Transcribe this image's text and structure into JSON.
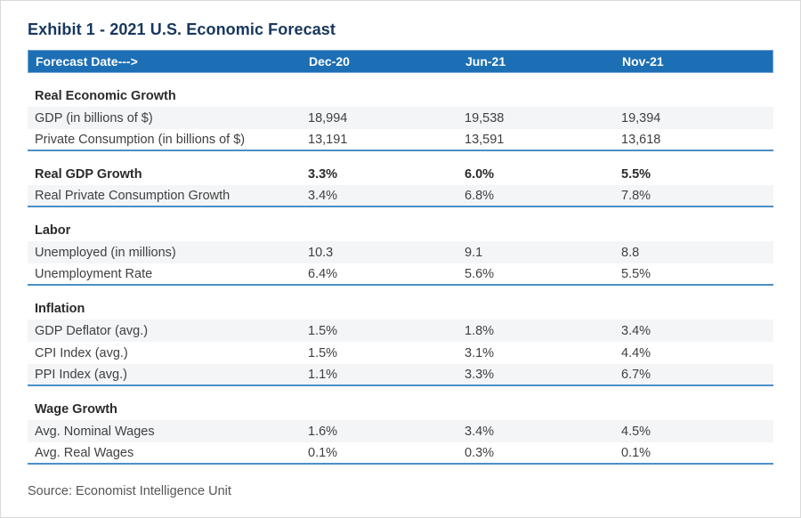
{
  "title": "Exhibit 1 - 2021 U.S. Economic Forecast",
  "source_note": "Source: Economist Intelligence Unit",
  "colors": {
    "header_bg": "#1d6fb5",
    "header_border": "#6fa3d8",
    "header_text": "#ffffff",
    "title_text": "#17375d",
    "section_rule": "#4b8fc9",
    "row_alt_bg": "#f3f5f7",
    "body_text": "#404040",
    "source_text": "#565656",
    "page_border": "#d9d9d9"
  },
  "chart_data": {
    "type": "table",
    "title": "Exhibit 1 - 2021 U.S. Economic Forecast",
    "columns": [
      "Forecast Date--->",
      "Dec-20",
      "Jun-21",
      "Nov-21"
    ],
    "sections": [
      {
        "name": "Real Economic Growth",
        "values": [
          "",
          "",
          ""
        ],
        "rows": [
          {
            "label": "GDP (in billions of $)",
            "values": [
              "18,994",
              "19,538",
              "19,394"
            ]
          },
          {
            "label": "Private Consumption (in billions of $)",
            "values": [
              "13,191",
              "13,591",
              "13,618"
            ]
          }
        ]
      },
      {
        "name": "Real GDP Growth",
        "values": [
          "3.3%",
          "6.0%",
          "5.5%"
        ],
        "rows": [
          {
            "label": "Real Private Consumption Growth",
            "values": [
              "3.4%",
              "6.8%",
              "7.8%"
            ]
          }
        ]
      },
      {
        "name": "Labor",
        "values": [
          "",
          "",
          ""
        ],
        "rows": [
          {
            "label": "Unemployed (in millions)",
            "values": [
              "10.3",
              "9.1",
              "8.8"
            ]
          },
          {
            "label": "Unemployment Rate",
            "values": [
              "6.4%",
              "5.6%",
              "5.5%"
            ]
          }
        ]
      },
      {
        "name": "Inflation",
        "values": [
          "",
          "",
          ""
        ],
        "rows": [
          {
            "label": "GDP Deflator (avg.)",
            "values": [
              "1.5%",
              "1.8%",
              "3.4%"
            ]
          },
          {
            "label": "CPI Index (avg.)",
            "values": [
              "1.5%",
              "3.1%",
              "4.4%"
            ]
          },
          {
            "label": "PPI Index (avg.)",
            "values": [
              "1.1%",
              "3.3%",
              "6.7%"
            ]
          }
        ]
      },
      {
        "name": "Wage Growth",
        "values": [
          "",
          "",
          ""
        ],
        "rows": [
          {
            "label": "Avg. Nominal Wages",
            "values": [
              "1.6%",
              "3.4%",
              "4.5%"
            ]
          },
          {
            "label": "Avg. Real Wages",
            "values": [
              "0.1%",
              "0.3%",
              "0.1%"
            ]
          }
        ]
      }
    ],
    "source": "Source: Economist Intelligence Unit"
  }
}
